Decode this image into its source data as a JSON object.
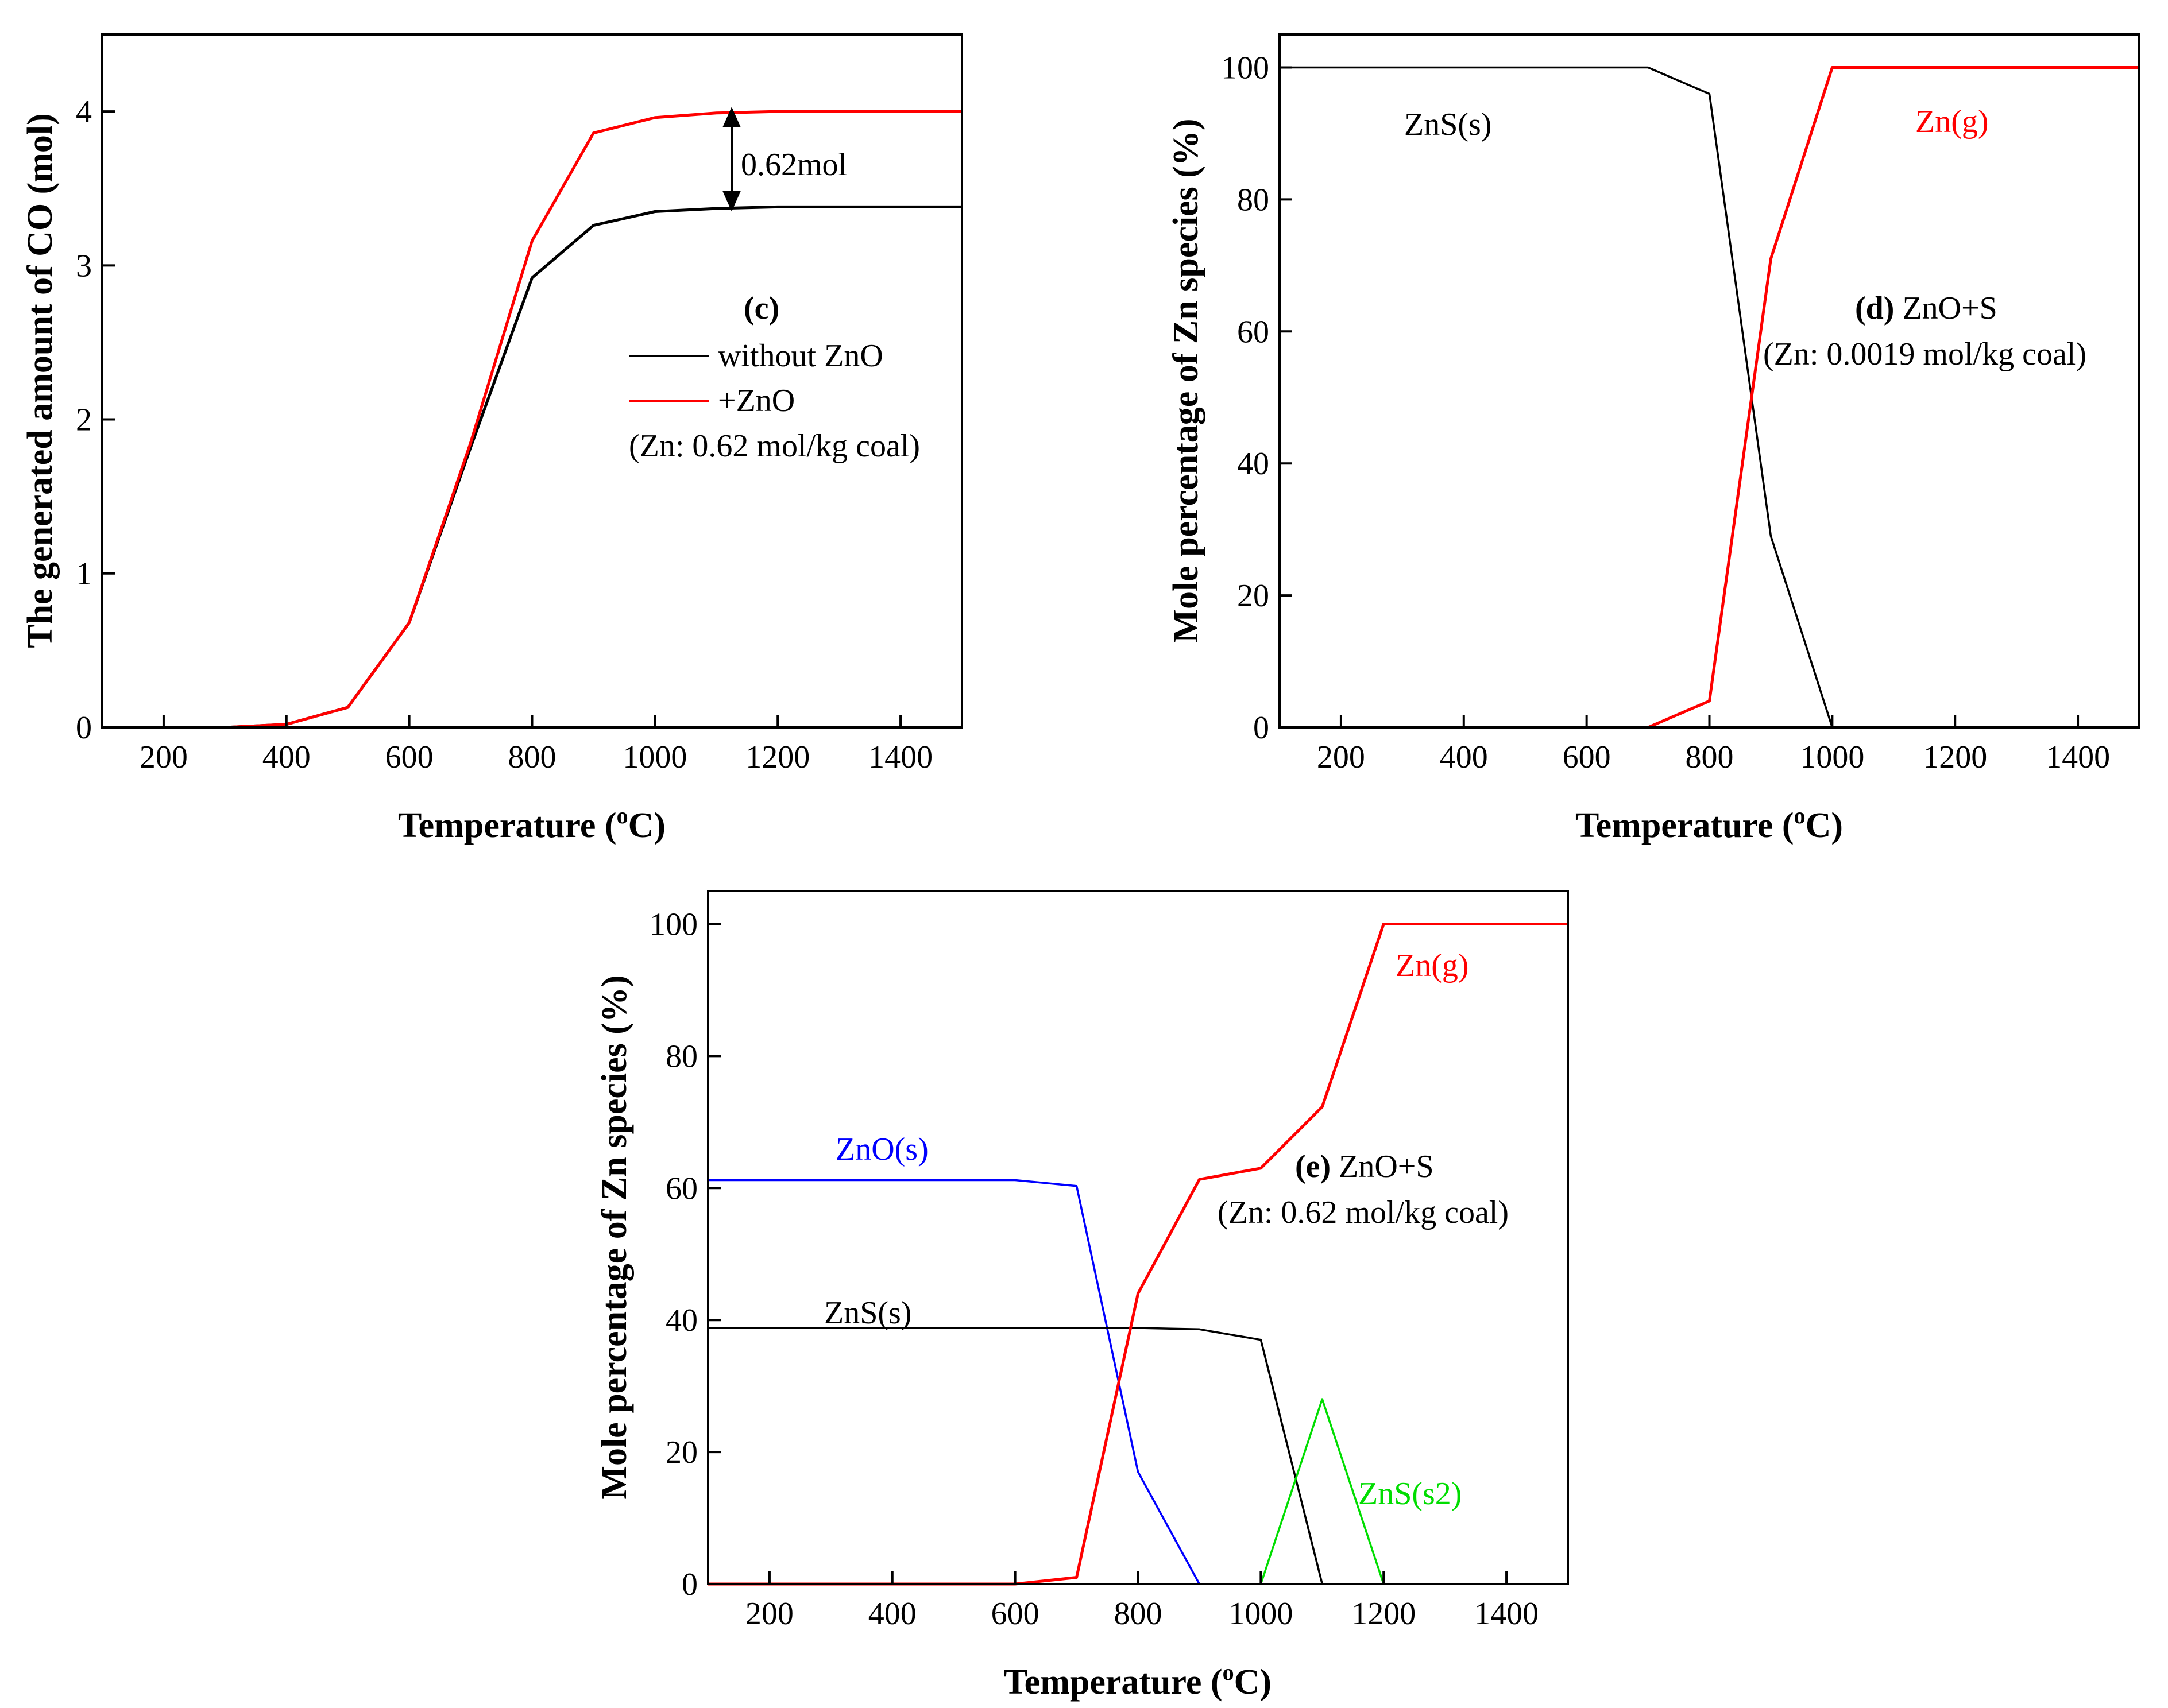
{
  "chart_data": [
    {
      "id": "c",
      "type": "line",
      "panel_label": "(c)",
      "title": "",
      "xlabel": "Temperature (",
      "xlabel_sup": "o",
      "xlabel_tail": "C)",
      "ylabel": "The generated amount of CO (mol)",
      "xlim": [
        100,
        1500
      ],
      "ylim": [
        0,
        4.5
      ],
      "xticks": [
        200,
        400,
        600,
        800,
        1000,
        1200,
        1400
      ],
      "yticks": [
        0,
        1,
        2,
        3,
        4
      ],
      "colors": {
        "black": "#000000",
        "red": "#ff0000"
      },
      "series": [
        {
          "name": "without ZnO",
          "color": "#000000",
          "x": [
            100,
            200,
            300,
            400,
            500,
            600,
            700,
            800,
            900,
            1000,
            1100,
            1200,
            1300,
            1400,
            1500
          ],
          "y": [
            0,
            0,
            0,
            0.02,
            0.13,
            0.68,
            1.82,
            2.92,
            3.26,
            3.35,
            3.37,
            3.38,
            3.38,
            3.38,
            3.38
          ]
        },
        {
          "name": "+ZnO",
          "color": "#ff0000",
          "x": [
            100,
            200,
            300,
            400,
            500,
            600,
            700,
            800,
            900,
            1000,
            1100,
            1200,
            1300,
            1400,
            1500
          ],
          "y": [
            0,
            0,
            0,
            0.02,
            0.13,
            0.68,
            1.85,
            3.16,
            3.86,
            3.96,
            3.99,
            4.0,
            4.0,
            4.0,
            4.0
          ]
        }
      ],
      "legend": {
        "items": [
          "without ZnO",
          "+ZnO"
        ],
        "note": "(Zn: 0.62 mol/kg coal)"
      },
      "annotation": {
        "text": "0.62mol",
        "x": 1125,
        "y_top": 4.0,
        "y_bottom": 3.38
      }
    },
    {
      "id": "d",
      "type": "line",
      "panel_label": "(d)",
      "panel_title": " ZnO+S",
      "panel_note": "(Zn: 0.0019 mol/kg coal)",
      "xlabel": "Temperature (",
      "xlabel_sup": "o",
      "xlabel_tail": "C)",
      "ylabel": "Mole percentage of Zn species (%)",
      "xlim": [
        100,
        1500
      ],
      "ylim": [
        0,
        105
      ],
      "xticks": [
        200,
        400,
        600,
        800,
        1000,
        1200,
        1400
      ],
      "yticks": [
        0,
        20,
        40,
        60,
        80,
        100
      ],
      "series": [
        {
          "name": "ZnS(s)",
          "color": "#000000",
          "x": [
            100,
            700,
            800,
            900,
            1000,
            1100,
            1200,
            1300,
            1400,
            1500
          ],
          "y": [
            100,
            100,
            96,
            29,
            0,
            0,
            0,
            0,
            0,
            0
          ]
        },
        {
          "name": "Zn(g)",
          "color": "#ff0000",
          "x": [
            100,
            700,
            800,
            900,
            1000,
            1100,
            1200,
            1300,
            1400,
            1500
          ],
          "y": [
            0,
            0,
            4,
            71,
            100,
            100,
            100,
            100,
            100,
            100
          ]
        }
      ],
      "labels": [
        {
          "text": "ZnS(s)",
          "color": "#000000"
        },
        {
          "text": "Zn(g)",
          "color": "#ff0000"
        }
      ]
    },
    {
      "id": "e",
      "type": "line",
      "panel_label": "(e)",
      "panel_title": " ZnO+S",
      "panel_note": "(Zn: 0.62 mol/kg coal)",
      "xlabel": "Temperature (",
      "xlabel_sup": "o",
      "xlabel_tail": "C)",
      "ylabel": "Mole percentage of Zn species (%)",
      "xlim": [
        100,
        1500
      ],
      "ylim": [
        0,
        105
      ],
      "xticks": [
        200,
        400,
        600,
        800,
        1000,
        1200,
        1400
      ],
      "yticks": [
        0,
        20,
        40,
        60,
        80,
        100
      ],
      "series": [
        {
          "name": "ZnO(s)",
          "color": "#0000ff",
          "x": [
            100,
            600,
            700,
            800,
            900,
            1000,
            1100,
            1200,
            1300,
            1400,
            1500
          ],
          "y": [
            61.2,
            61.2,
            60.3,
            17,
            0,
            0,
            0,
            0,
            0,
            0,
            0
          ]
        },
        {
          "name": "ZnS(s)",
          "color": "#000000",
          "x": [
            100,
            800,
            900,
            1000,
            1100,
            1200,
            1300,
            1400,
            1500
          ],
          "y": [
            38.8,
            38.8,
            38.6,
            37,
            0,
            0,
            0,
            0,
            0
          ]
        },
        {
          "name": "Zn(g)",
          "color": "#ff0000",
          "x": [
            100,
            600,
            700,
            800,
            900,
            1000,
            1100,
            1200,
            1300,
            1400,
            1500
          ],
          "y": [
            0,
            0,
            1,
            44,
            61.3,
            63,
            72.3,
            100,
            100,
            100,
            100
          ]
        },
        {
          "name": "ZnS(s2)",
          "color": "#00dd00",
          "x": [
            100,
            1000,
            1100,
            1200,
            1300,
            1400,
            1500
          ],
          "y": [
            0,
            0,
            28,
            0,
            0,
            0,
            0
          ]
        }
      ],
      "labels": [
        {
          "text": "ZnO(s)",
          "color": "#0000ff"
        },
        {
          "text": "ZnS(s)",
          "color": "#000000"
        },
        {
          "text": "Zn(g)",
          "color": "#ff0000"
        },
        {
          "text": "ZnS(s2)",
          "color": "#00dd00"
        }
      ]
    }
  ]
}
